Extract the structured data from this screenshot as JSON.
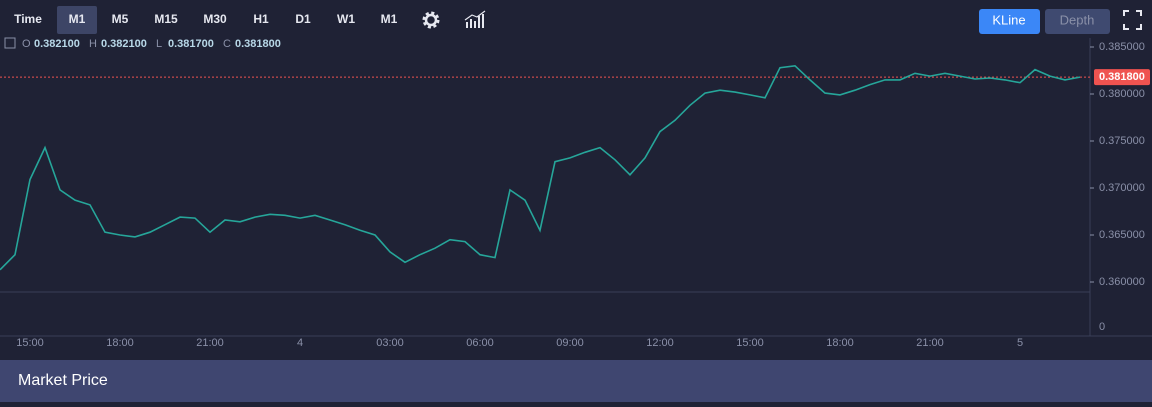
{
  "toolbar": {
    "periods": [
      "Time",
      "M1",
      "M5",
      "M15",
      "M30",
      "H1",
      "D1",
      "W1",
      "M1"
    ],
    "views": [
      "KLine",
      "Depth"
    ]
  },
  "ohlc": {
    "labels": [
      "O",
      "H",
      "L",
      "C"
    ],
    "values": [
      "0.382100",
      "0.382100",
      "0.381700",
      "0.381800"
    ]
  },
  "footer": {
    "title": "Market Price"
  },
  "chart_data": {
    "type": "line",
    "categories": [
      null,
      null,
      "15:00",
      null,
      null,
      null,
      null,
      null,
      "18:00",
      null,
      null,
      null,
      null,
      null,
      "21:00",
      null,
      null,
      null,
      null,
      null,
      "4",
      null,
      null,
      null,
      null,
      null,
      "03:00",
      null,
      null,
      null,
      null,
      null,
      "06:00",
      null,
      null,
      null,
      null,
      null,
      "09:00",
      null,
      null,
      null,
      null,
      null,
      "12:00",
      null,
      null,
      null,
      null,
      null,
      "15:00",
      null,
      null,
      null,
      null,
      null,
      "18:00",
      null,
      null,
      null,
      null,
      null,
      "21:00",
      null,
      null,
      null,
      null,
      null,
      "5",
      null,
      null,
      null,
      null
    ],
    "series": [
      {
        "color": "#26a69a",
        "values": [
          0.3613,
          0.3629,
          0.3709,
          0.3743,
          0.3698,
          0.3687,
          0.3682,
          0.3653,
          0.365,
          0.3648,
          0.3653,
          0.3661,
          0.3669,
          0.3668,
          0.3653,
          0.3666,
          0.3664,
          0.3669,
          0.3672,
          0.3671,
          0.3668,
          0.3671,
          0.3666,
          0.3661,
          0.3655,
          0.365,
          0.3632,
          0.3621,
          0.3629,
          0.3636,
          0.3645,
          0.3643,
          0.3629,
          0.3626,
          0.3698,
          0.3687,
          0.3655,
          0.3728,
          0.3732,
          0.3738,
          0.3743,
          0.373,
          0.3714,
          0.3732,
          0.376,
          0.3772,
          0.3788,
          0.3801,
          0.3804,
          0.3802,
          0.3799,
          0.3796,
          0.3828,
          0.383,
          0.3815,
          0.3801,
          0.3799,
          0.3804,
          0.381,
          0.3815,
          0.3815,
          0.3822,
          0.3819,
          0.3822,
          0.3819,
          0.3816,
          0.3817,
          0.3815,
          0.3812,
          0.3826,
          0.3819,
          0.3815,
          0.3818
        ]
      }
    ],
    "ylim": [
      0.359,
      0.386
    ],
    "yticks": [
      {
        "value": 0.36,
        "label": "0.360000"
      },
      {
        "value": 0.365,
        "label": "0.365000"
      },
      {
        "value": 0.37,
        "label": "0.370000"
      },
      {
        "value": 0.375,
        "label": "0.375000"
      },
      {
        "value": 0.38,
        "label": "0.380000"
      },
      {
        "value": 0.385,
        "label": "0.385000"
      }
    ],
    "last_price": {
      "value": 0.3818,
      "label": "0.381800"
    },
    "volume_ticks": [
      0
    ]
  }
}
